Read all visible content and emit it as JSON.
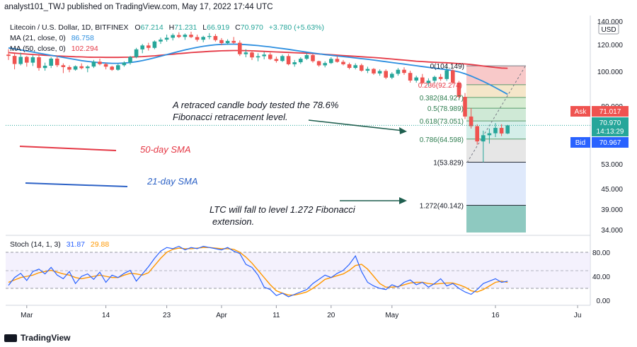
{
  "header": "analyst101_TWJ published on TradingView.com, May 17, 2022 17:44 UTC",
  "legend": {
    "symbol": "Litecoin / U.S. Dollar, 1D, BITFINEX",
    "o_label": "O",
    "o_value": "67.214",
    "h_label": "H",
    "h_value": "71.231",
    "l_label": "L",
    "l_value": "66.919",
    "c_label": "C",
    "c_value": "70.970",
    "change": "+3.780 (+5.63%)",
    "ma21": "MA (21, close, 0)",
    "ma21_value": "86.758",
    "ma50": "MA (50, close, 0)",
    "ma50_value": "102.294",
    "stoch": "Stoch (14, 1, 3)",
    "stoch_k": "31.87",
    "stoch_d": "29.88"
  },
  "currency": "USD",
  "price_ticks": [
    "140.000",
    "120.000",
    "100.000",
    "80.000",
    "53.000",
    "45.000",
    "39.000",
    "34.000"
  ],
  "stoch_ticks": [
    "80.00",
    "40.00",
    "0.00"
  ],
  "x_ticks": [
    "Mar",
    "14",
    "23",
    "Apr",
    "11",
    "20",
    "May",
    "16",
    "Ju"
  ],
  "ask": {
    "label": "Ask",
    "value": "71.017"
  },
  "last": {
    "value": "70.970",
    "countdown": "14:13:29"
  },
  "bid": {
    "label": "Bid",
    "value": "70.967"
  },
  "fib_levels": [
    "0(104.149)",
    "0.236(92.274)",
    "0.382(84.927)",
    "0.5(78.989)",
    "0.618(73.051)",
    "0.786(64.598)",
    "1(53.829)",
    "1.272(40.142)"
  ],
  "annotations": {
    "retrace_line1": "A retraced candle body tested the 78.6%",
    "retrace_line2": "Fibonacci retracement level.",
    "sma50": "50-day SMA",
    "sma21": "21-day SMA",
    "ext_line1": "LTC will fall to level 1.272 Fibonacci",
    "ext_line2": "extension."
  },
  "branding": "TradingView",
  "colors": {
    "up": "#26a69a",
    "down": "#ef5350",
    "ma50": "#e53946",
    "ma21": "#2d8fe0",
    "stoch_k": "#2962ff",
    "stoch_d": "#ff9800",
    "arrow": "#1f5f4f",
    "ask": "#ef5350",
    "bid": "#2962ff",
    "last": "#26a69a"
  },
  "chart_data": {
    "type": "candlestick",
    "title": "Litecoin / U.S. Dollar, 1D, BITFINEX",
    "candles": [
      [
        112.5,
        116.5,
        108.5,
        111.5
      ],
      [
        111.5,
        113.5,
        101.5,
        105.5
      ],
      [
        105.5,
        114.0,
        104.5,
        110.8
      ],
      [
        110.8,
        111.5,
        103.5,
        106.5
      ],
      [
        106.5,
        112.0,
        104.0,
        110.5
      ],
      [
        110.5,
        113.0,
        100.5,
        102.5
      ],
      [
        102.5,
        106.5,
        100.5,
        104.2
      ],
      [
        104.2,
        110.5,
        102.5,
        109.5
      ],
      [
        109.5,
        111.8,
        103.2,
        104.6
      ],
      [
        104.6,
        106.0,
        99.0,
        103.2
      ],
      [
        103.2,
        104.5,
        99.5,
        101.3
      ],
      [
        101.3,
        104.5,
        100.5,
        103.8
      ],
      [
        103.8,
        106.0,
        101.5,
        102.4
      ],
      [
        102.4,
        104.5,
        99.5,
        103.6
      ],
      [
        103.6,
        108.5,
        102.5,
        107.2
      ],
      [
        107.2,
        109.5,
        104.5,
        105.4
      ],
      [
        105.4,
        106.5,
        101.5,
        103.5
      ],
      [
        103.5,
        104.2,
        100.4,
        101.2
      ],
      [
        101.2,
        105.5,
        100.5,
        104.6
      ],
      [
        104.6,
        107.5,
        103.5,
        106.5
      ],
      [
        106.5,
        111.5,
        105.0,
        110.7
      ],
      [
        110.7,
        117.5,
        109.8,
        116.4
      ],
      [
        116.4,
        120.5,
        113.5,
        119.3
      ],
      [
        119.3,
        121.5,
        115.5,
        117.5
      ],
      [
        117.5,
        123.5,
        116.5,
        122.6
      ],
      [
        122.6,
        126.0,
        120.5,
        124.2
      ],
      [
        124.2,
        128.5,
        122.5,
        125.8
      ],
      [
        125.8,
        129.5,
        123.5,
        128.1
      ],
      [
        128.1,
        130.5,
        125.5,
        126.5
      ],
      [
        126.5,
        129.5,
        124.0,
        128.4
      ],
      [
        128.4,
        131.0,
        125.5,
        126.4
      ],
      [
        126.4,
        128.5,
        122.5,
        124.1
      ],
      [
        124.1,
        127.5,
        122.0,
        126.5
      ],
      [
        126.5,
        129.8,
        124.5,
        127.3
      ],
      [
        127.3,
        129.0,
        122.5,
        123.8
      ],
      [
        123.8,
        125.5,
        119.5,
        121.2
      ],
      [
        121.2,
        124.5,
        119.8,
        123.1
      ],
      [
        123.1,
        126.5,
        120.5,
        121.5
      ],
      [
        121.5,
        123.5,
        111.5,
        112.8
      ],
      [
        112.8,
        116.5,
        110.5,
        114.1
      ],
      [
        114.1,
        115.5,
        108.5,
        110.4
      ],
      [
        110.4,
        113.5,
        107.5,
        111.3
      ],
      [
        111.3,
        114.5,
        109.0,
        112.5
      ],
      [
        112.5,
        114.0,
        108.5,
        109.2
      ],
      [
        109.2,
        111.0,
        106.5,
        107.8
      ],
      [
        107.8,
        112.5,
        107.0,
        111.4
      ],
      [
        111.4,
        113.0,
        104.5,
        105.3
      ],
      [
        105.3,
        108.5,
        103.5,
        106.8
      ],
      [
        106.8,
        110.5,
        105.5,
        109.4
      ],
      [
        109.4,
        113.5,
        108.5,
        112.1
      ],
      [
        112.1,
        113.0,
        106.5,
        107.6
      ],
      [
        107.6,
        108.0,
        103.5,
        104.5
      ],
      [
        104.5,
        107.5,
        103.0,
        106.2
      ],
      [
        106.2,
        110.5,
        105.5,
        109.3
      ],
      [
        109.3,
        111.5,
        106.5,
        107.1
      ],
      [
        107.1,
        108.5,
        104.5,
        105.3
      ],
      [
        105.3,
        106.5,
        101.5,
        102.6
      ],
      [
        102.6,
        106.0,
        101.5,
        104.6
      ],
      [
        104.6,
        105.8,
        99.8,
        100.5
      ],
      [
        100.5,
        103.5,
        99.0,
        101.8
      ],
      [
        101.8,
        102.5,
        98.0,
        98.8
      ],
      [
        98.8,
        101.5,
        97.5,
        100.3
      ],
      [
        100.3,
        101.5,
        95.5,
        96.4
      ],
      [
        96.4,
        99.5,
        95.5,
        98.6
      ],
      [
        98.6,
        102.5,
        97.5,
        101.2
      ],
      [
        101.2,
        103.0,
        98.0,
        99.1
      ],
      [
        99.1,
        100.5,
        93.5,
        94.7
      ],
      [
        94.7,
        97.5,
        93.5,
        96.5
      ],
      [
        96.5,
        98.5,
        92.5,
        93.2
      ],
      [
        93.2,
        96.0,
        91.5,
        94.6
      ],
      [
        94.6,
        97.5,
        93.0,
        96.8
      ],
      [
        96.8,
        98.5,
        94.5,
        95.6
      ],
      [
        95.6,
        104.2,
        94.5,
        100.8
      ],
      [
        100.8,
        101.5,
        92.5,
        93.5
      ],
      [
        93.5,
        94.5,
        84.5,
        85.3
      ],
      [
        85.3,
        87.5,
        74.0,
        75.1
      ],
      [
        75.1,
        79.0,
        69.5,
        70.6
      ],
      [
        70.6,
        71.5,
        62.0,
        63.5
      ],
      [
        63.5,
        68.5,
        53.8,
        66.4
      ],
      [
        66.4,
        69.5,
        62.5,
        67.3
      ],
      [
        67.3,
        72.0,
        65.5,
        69.8
      ],
      [
        69.8,
        71.5,
        66.0,
        67.2
      ],
      [
        67.2,
        71.2,
        66.9,
        70.97
      ]
    ],
    "ma50": [
      114,
      113.6,
      113.2,
      112.9,
      112.6,
      112.3,
      112,
      111.8,
      111.5,
      111.3,
      111.1,
      110.9,
      110.8,
      110.6,
      110.5,
      110.5,
      110.4,
      110.4,
      110.4,
      110.5,
      110.6,
      110.8,
      111,
      111.3,
      111.6,
      112,
      112.4,
      112.8,
      113.2,
      113.6,
      114,
      114.3,
      114.6,
      114.9,
      115.1,
      115.3,
      115.4,
      115.5,
      115.5,
      115.4,
      115.3,
      115.1,
      114.9,
      114.7,
      114.5,
      114.3,
      114.1,
      113.9,
      113.7,
      113.5,
      113.3,
      113,
      112.7,
      112.4,
      112.1,
      111.8,
      111.5,
      111.2,
      110.9,
      110.6,
      110.3,
      110,
      109.6,
      109.2,
      108.8,
      108.4,
      108,
      107.6,
      107.3,
      107,
      106.8,
      106.6,
      106.4,
      106.1,
      105.8,
      105.5,
      105.1,
      104.6,
      104,
      103.4,
      102.9,
      102.5,
      102.3
    ],
    "ma21": [
      117.5,
      116.8,
      116,
      115.2,
      114.4,
      113.6,
      112.8,
      112,
      111.2,
      110.4,
      109.6,
      108.8,
      108,
      107.4,
      106.9,
      106.5,
      106.2,
      106,
      106,
      106.2,
      106.6,
      107.2,
      108,
      109,
      110.1,
      111.3,
      112.5,
      113.7,
      114.9,
      116,
      117,
      117.9,
      118.7,
      119.3,
      119.8,
      120.1,
      120.3,
      120.3,
      120.2,
      119.9,
      119.6,
      119.2,
      118.7,
      118.2,
      117.6,
      117,
      116.4,
      115.7,
      115,
      114.3,
      113.7,
      113.1,
      112.5,
      112,
      111.5,
      111,
      110.5,
      110,
      109.5,
      109,
      108.4,
      107.8,
      107.2,
      106.6,
      106,
      105.4,
      104.8,
      104.2,
      103.6,
      103,
      102.4,
      101.8,
      101.3,
      100.6,
      99.7,
      98.6,
      97.3,
      95.8,
      94.2,
      92.5,
      90.6,
      88.7,
      86.76
    ],
    "stoch_k": [
      25,
      38,
      45,
      33,
      48,
      52,
      44,
      55,
      42,
      36,
      48,
      28,
      40,
      44,
      35,
      47,
      30,
      42,
      38,
      45,
      50,
      32,
      44,
      56,
      70,
      82,
      88,
      86,
      90,
      84,
      88,
      86,
      90,
      88,
      86,
      84,
      88,
      82,
      78,
      60,
      55,
      42,
      22,
      18,
      8,
      12,
      6,
      10,
      14,
      18,
      28,
      35,
      42,
      38,
      45,
      50,
      60,
      74,
      48,
      30,
      24,
      20,
      18,
      26,
      22,
      30,
      34,
      26,
      30,
      22,
      28,
      36,
      24,
      28,
      20,
      14,
      10,
      18,
      28,
      32,
      36,
      30,
      31.87
    ],
    "stoch_d": [
      30,
      34,
      38,
      40,
      42,
      46,
      48,
      50,
      47,
      44,
      42,
      38,
      36,
      38,
      40,
      42,
      40,
      38,
      38,
      42,
      45,
      44,
      42,
      46,
      58,
      70,
      80,
      85,
      87,
      86,
      86,
      87,
      88,
      88,
      87,
      86,
      86,
      85,
      80,
      72,
      62,
      50,
      38,
      26,
      16,
      12,
      9,
      9,
      11,
      14,
      20,
      27,
      35,
      38,
      41,
      44,
      50,
      58,
      60,
      52,
      40,
      28,
      22,
      22,
      23,
      26,
      29,
      30,
      30,
      28,
      27,
      28,
      29,
      29,
      26,
      22,
      16,
      14,
      18,
      24,
      30,
      32,
      29.88
    ],
    "price_ticks": [
      140,
      120,
      100,
      80,
      53,
      45,
      39,
      34
    ],
    "stoch_ticks": [
      80,
      40,
      0
    ],
    "stoch_range": [
      0,
      100
    ],
    "fib": [
      {
        "ratio": 0,
        "price": 104.149
      },
      {
        "ratio": 0.236,
        "price": 92.274
      },
      {
        "ratio": 0.382,
        "price": 84.927
      },
      {
        "ratio": 0.5,
        "price": 78.989
      },
      {
        "ratio": 0.618,
        "price": 73.051
      },
      {
        "ratio": 0.786,
        "price": 64.598
      },
      {
        "ratio": 1,
        "price": 53.829
      },
      {
        "ratio": 1.272,
        "price": 40.142
      }
    ]
  }
}
